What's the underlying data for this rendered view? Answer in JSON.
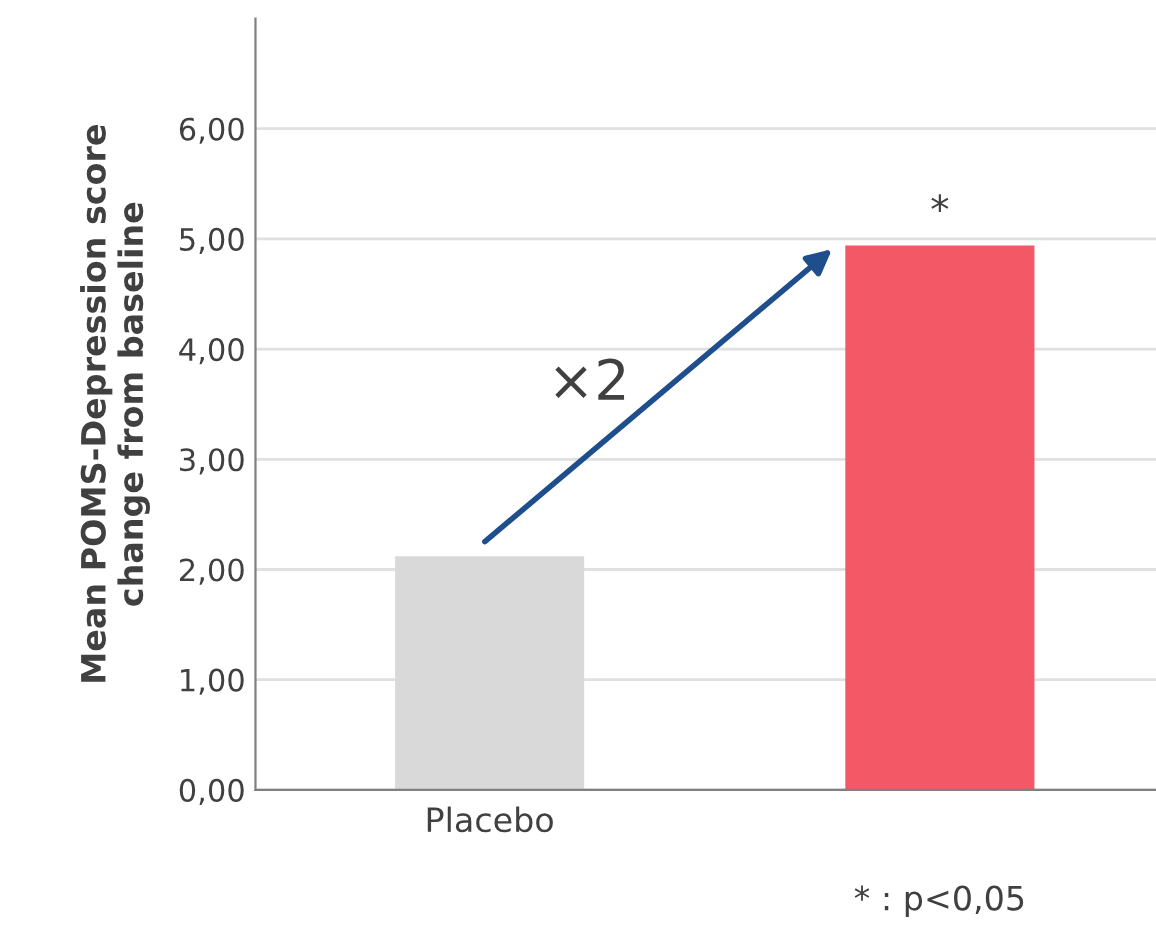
{
  "chart_data": {
    "type": "bar",
    "ylabel": "Mean POMS-Depression score\nchange from baseline",
    "categories": [
      "Placebo",
      null
    ],
    "values": [
      2.12,
      4.94
    ],
    "colors": [
      "#d9d9d9",
      "#f25865"
    ],
    "ylim": [
      0,
      7
    ],
    "yticks": [
      {
        "value": 0,
        "label": "0,00"
      },
      {
        "value": 1,
        "label": "1,00"
      },
      {
        "value": 2,
        "label": "2,00"
      },
      {
        "value": 3,
        "label": "3,00"
      },
      {
        "value": 4,
        "label": "4,00"
      },
      {
        "value": 5,
        "label": "5,00"
      },
      {
        "value": 6,
        "label": "6,00"
      }
    ],
    "grid": "y",
    "legend": false,
    "annotations": [
      "×2",
      "*",
      "* : p<0,05"
    ]
  }
}
